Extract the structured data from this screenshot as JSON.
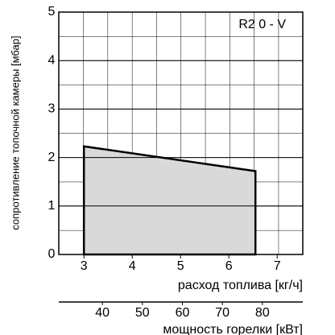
{
  "chart_data": {
    "type": "area",
    "title": "R2 0 - V",
    "x_label": "расход топлива [кг/ч]",
    "y_label": "сопротивление топочной камеры [мбар]",
    "x2_label": "мощность горелки [кВт]",
    "x": [
      3,
      3,
      6.55,
      6.55
    ],
    "values": [
      0,
      2.23,
      1.72,
      0
    ],
    "color": "#d9d9d9",
    "xlim": [
      2.48,
      7.53
    ],
    "xticks": [
      3,
      4,
      5,
      6,
      7
    ],
    "ylim": [
      0,
      5
    ],
    "yticks": [
      0,
      1,
      2,
      3,
      4,
      5
    ],
    "x2lim": [
      29.1,
      90.1
    ],
    "x2ticks": [
      40,
      50,
      60,
      70,
      80
    ],
    "grid": true
  }
}
